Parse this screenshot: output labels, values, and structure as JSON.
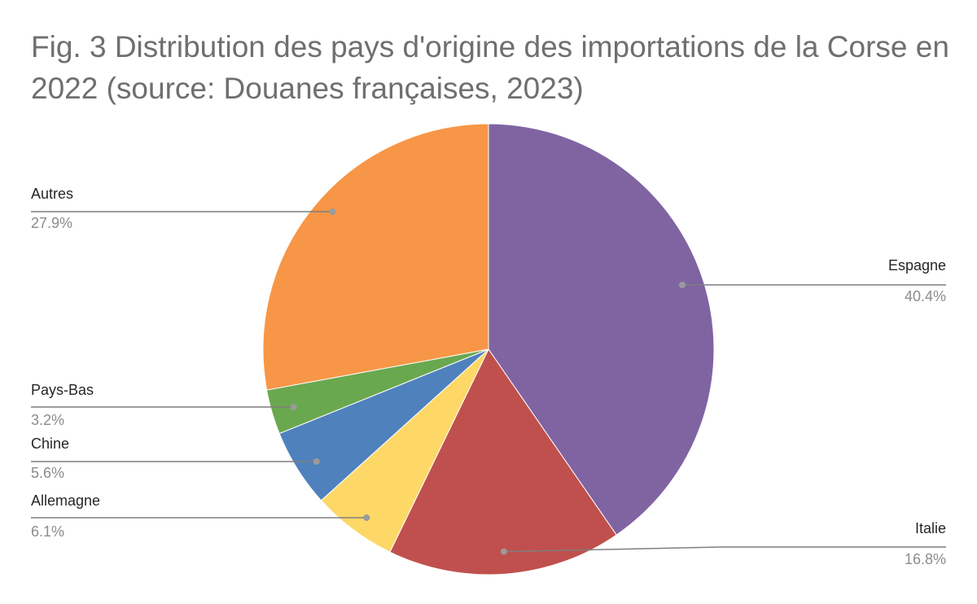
{
  "chart_data": {
    "type": "pie",
    "title": "Fig. 3 Distribution des pays d'origine des importations de la Corse en 2022 (source: Douanes françaises, 2023)",
    "slices": [
      {
        "label": "Espagne",
        "value": 40.4,
        "value_label": "40.4%",
        "color": "#8064a2"
      },
      {
        "label": "Italie",
        "value": 16.8,
        "value_label": "16.8%",
        "color": "#c0504d"
      },
      {
        "label": "Allemagne",
        "value": 6.1,
        "value_label": "6.1%",
        "color": "#fdd867"
      },
      {
        "label": "Chine",
        "value": 5.6,
        "value_label": "5.6%",
        "color": "#4f81bd"
      },
      {
        "label": "Pays-Bas",
        "value": 3.2,
        "value_label": "3.2%",
        "color": "#6aa84f"
      },
      {
        "label": "Autres",
        "value": 27.9,
        "value_label": "27.9%",
        "color": "#f79646"
      }
    ],
    "start_angle": "12 o'clock",
    "direction": "clockwise",
    "labels": "outside with leader lines"
  }
}
